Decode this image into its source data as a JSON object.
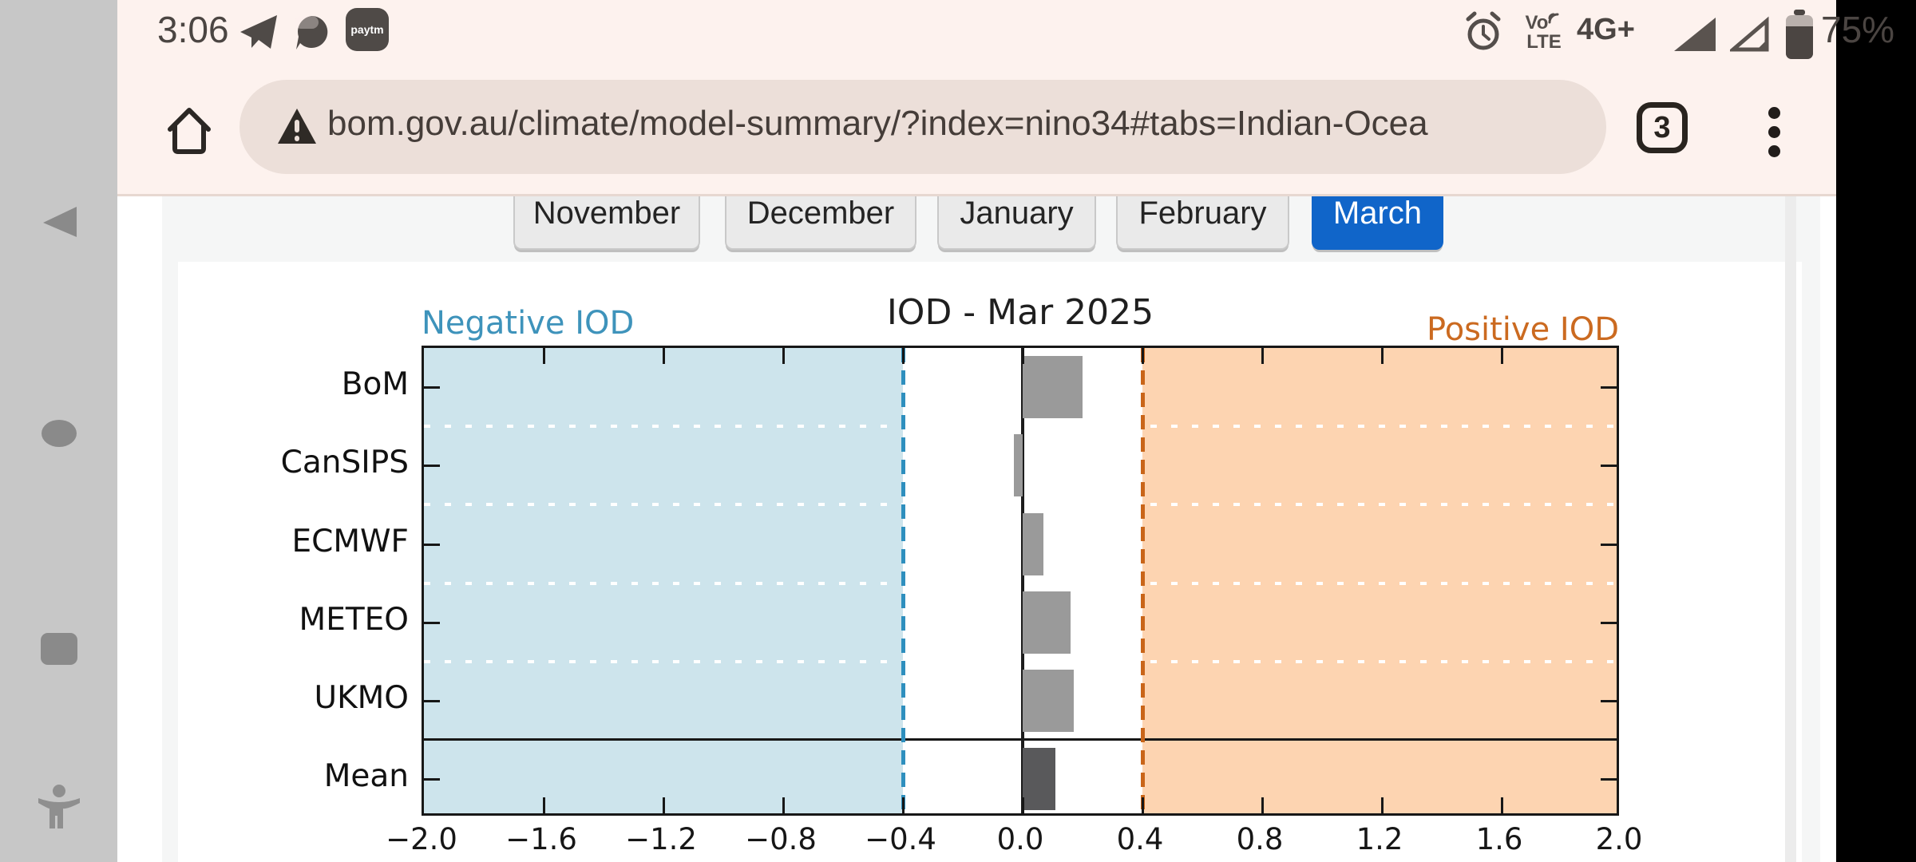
{
  "status_bar": {
    "time": "3:06",
    "network_badge": "4G+",
    "volte_line1": "Vo",
    "volte_line2": "LTE",
    "battery_percent": "75%",
    "paytm_label": "paytm"
  },
  "browser": {
    "url": "bom.gov.au/climate/model-summary/?index=nino34#tabs=Indian-Ocea",
    "tab_count": "3"
  },
  "months": {
    "items": [
      {
        "label": "November",
        "active": false
      },
      {
        "label": "December",
        "active": false
      },
      {
        "label": "January",
        "active": false
      },
      {
        "label": "February",
        "active": false
      },
      {
        "label": "March",
        "active": true
      }
    ]
  },
  "chart_data": {
    "type": "bar",
    "orientation": "horizontal",
    "title": "IOD - Mar 2025",
    "region_labels": {
      "negative": "Negative IOD",
      "positive": "Positive IOD"
    },
    "categories": [
      "BoM",
      "CanSIPS",
      "ECMWF",
      "METEO",
      "UKMO",
      "Mean"
    ],
    "values": [
      0.2,
      -0.03,
      0.07,
      0.16,
      0.17,
      0.11
    ],
    "xlim": [
      -2.0,
      2.0
    ],
    "xtick_labels": [
      "−2.0",
      "−1.6",
      "−1.2",
      "−0.8",
      "−0.4",
      "0.0",
      "0.4",
      "0.8",
      "1.2",
      "1.6",
      "2.0"
    ],
    "thresholds": {
      "negative": -0.4,
      "positive": 0.4
    },
    "grid": "dotted-white-between-rows",
    "legend": "none",
    "colors": {
      "negative_region": "#cde4ec",
      "positive_region": "#fdd4b1",
      "negative_line": "#2e8fbe",
      "positive_line": "#c96519",
      "zero_line": "#1c1c1c",
      "model_bar": "#9a9a9a",
      "mean_bar": "#59595b",
      "negative_label": "#3e93bb",
      "positive_label": "#cb6a20"
    }
  }
}
